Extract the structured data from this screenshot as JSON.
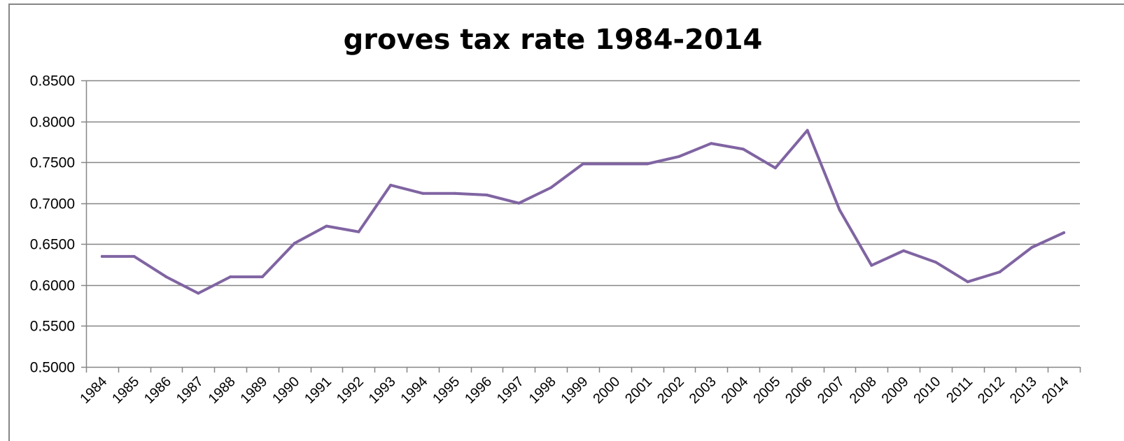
{
  "chart_data": {
    "type": "line",
    "title": "groves tax rate 1984-2014",
    "xlabel": "",
    "ylabel": "",
    "categories": [
      "1984",
      "1985",
      "1986",
      "1987",
      "1988",
      "1989",
      "1990",
      "1991",
      "1992",
      "1993",
      "1994",
      "1995",
      "1996",
      "1997",
      "1998",
      "1999",
      "2000",
      "2001",
      "2002",
      "2003",
      "2004",
      "2005",
      "2006",
      "2007",
      "2008",
      "2009",
      "2010",
      "2011",
      "2012",
      "2013",
      "2014"
    ],
    "series": [
      {
        "values": [
          0.635,
          0.635,
          0.61,
          0.59,
          0.61,
          0.61,
          0.651,
          0.672,
          0.665,
          0.722,
          0.712,
          0.712,
          0.71,
          0.7,
          0.719,
          0.748,
          0.748,
          0.748,
          0.757,
          0.773,
          0.766,
          0.743,
          0.789,
          0.692,
          0.624,
          0.642,
          0.628,
          0.604,
          0.616,
          0.646,
          0.664
        ],
        "color": "#8064a2"
      }
    ],
    "ylim": [
      0.5,
      0.85
    ],
    "yticks": [
      "0.5000",
      "0.5500",
      "0.6000",
      "0.6500",
      "0.7000",
      "0.7500",
      "0.8000",
      "0.8500"
    ],
    "grid": true,
    "legend": "none",
    "gridColor": "#868686",
    "axisColor": "#868686"
  }
}
